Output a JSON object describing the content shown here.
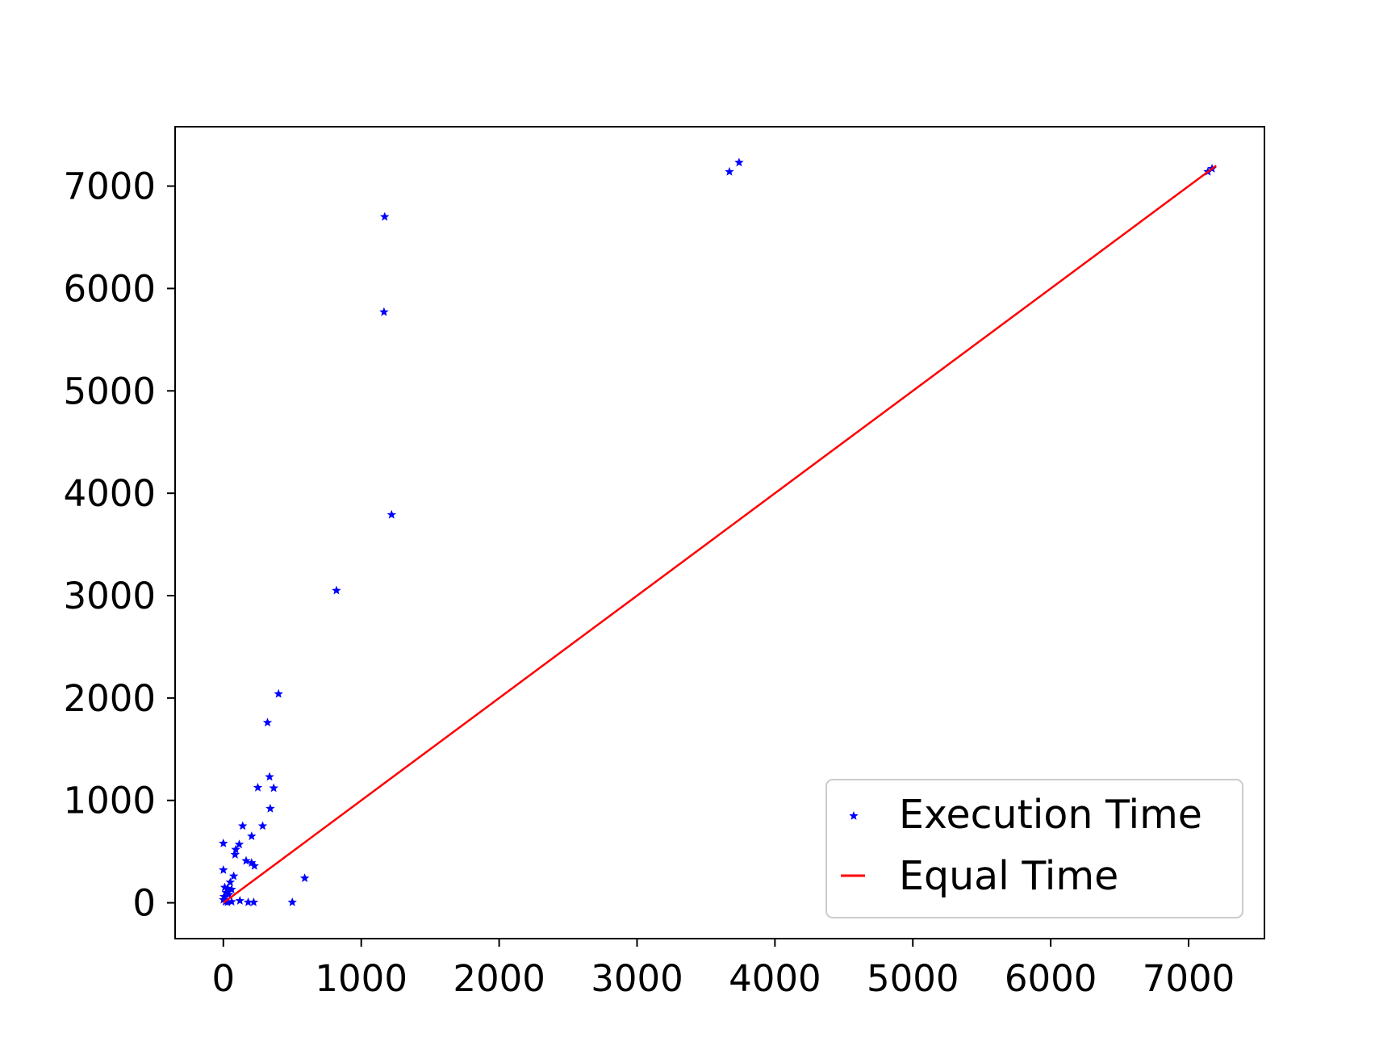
{
  "chart_data": {
    "type": "scatter",
    "title": "",
    "xlabel": "",
    "ylabel": "",
    "xlim": [
      -350,
      7550
    ],
    "ylim": [
      -350,
      7580
    ],
    "xticks": [
      0,
      1000,
      2000,
      3000,
      4000,
      5000,
      6000,
      7000
    ],
    "yticks": [
      0,
      1000,
      2000,
      3000,
      4000,
      5000,
      6000,
      7000
    ],
    "xtick_labels": [
      "0",
      "1000",
      "2000",
      "3000",
      "4000",
      "5000",
      "6000",
      "7000"
    ],
    "ytick_labels": [
      "0",
      "1000",
      "2000",
      "3000",
      "4000",
      "5000",
      "6000",
      "7000"
    ],
    "grid": false,
    "legend_position": "lower-right",
    "series": [
      {
        "name": "Execution Time",
        "kind": "scatter",
        "marker": "star",
        "color": "#0000ff",
        "points": [
          [
            3740,
            7230
          ],
          [
            3670,
            7140
          ],
          [
            7140,
            7140
          ],
          [
            7170,
            7170
          ],
          [
            1170,
            6700
          ],
          [
            1165,
            5770
          ],
          [
            1220,
            3790
          ],
          [
            820,
            3050
          ],
          [
            400,
            2040
          ],
          [
            320,
            1760
          ],
          [
            335,
            1230
          ],
          [
            365,
            1120
          ],
          [
            250,
            1125
          ],
          [
            340,
            920
          ],
          [
            140,
            750
          ],
          [
            285,
            750
          ],
          [
            205,
            650
          ],
          [
            115,
            570
          ],
          [
            0,
            580
          ],
          [
            90,
            520
          ],
          [
            85,
            470
          ],
          [
            165,
            410
          ],
          [
            205,
            390
          ],
          [
            225,
            360
          ],
          [
            0,
            320
          ],
          [
            75,
            260
          ],
          [
            50,
            200
          ],
          [
            10,
            150
          ],
          [
            30,
            140
          ],
          [
            60,
            130
          ],
          [
            20,
            100
          ],
          [
            40,
            80
          ],
          [
            5,
            60
          ],
          [
            0,
            30
          ],
          [
            15,
            10
          ],
          [
            30,
            5
          ],
          [
            60,
            10
          ],
          [
            120,
            20
          ],
          [
            180,
            5
          ],
          [
            220,
            5
          ],
          [
            500,
            5
          ],
          [
            590,
            240
          ]
        ]
      },
      {
        "name": "Equal Time",
        "kind": "line",
        "color": "#ff0000",
        "x": [
          0,
          7200
        ],
        "y": [
          0,
          7200
        ]
      }
    ]
  }
}
